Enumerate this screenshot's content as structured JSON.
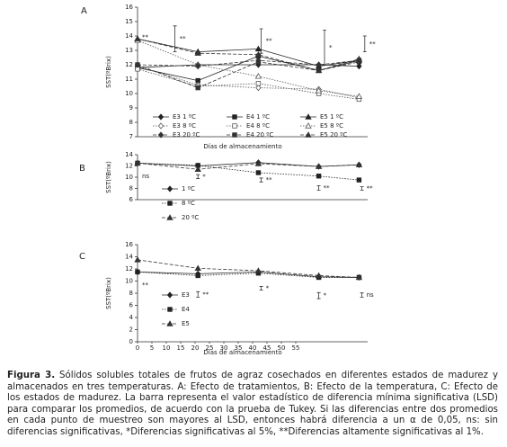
{
  "chart_data": [
    {
      "type": "line",
      "panel": "A",
      "y_label": "SST(ºBrix)",
      "x_label": "Días de almacenamiento",
      "x": [
        0,
        21,
        42,
        63,
        77
      ],
      "xlim": [
        0,
        80
      ],
      "ylim": [
        7,
        16
      ],
      "yticks": [
        7,
        8,
        9,
        10,
        11,
        12,
        13,
        14,
        15,
        16
      ],
      "series": [
        {
          "name": "E3 1 ºC",
          "color": "#222222",
          "marker": "diamond",
          "open": false,
          "dash": "solid",
          "values": [
            11.8,
            12.0,
            12.0,
            12.0,
            11.9
          ]
        },
        {
          "name": "E4 1 ºC",
          "color": "#222222",
          "marker": "square",
          "open": false,
          "dash": "solid",
          "values": [
            11.8,
            10.9,
            12.6,
            11.6,
            12.3
          ]
        },
        {
          "name": "E5 1 ºC",
          "color": "#222222",
          "marker": "triangle",
          "open": false,
          "dash": "solid",
          "values": [
            13.8,
            12.9,
            13.1,
            11.9,
            12.3
          ]
        },
        {
          "name": "E3 8 ºC",
          "color": "#555555",
          "marker": "diamond",
          "open": true,
          "dash": "dotted",
          "values": [
            11.9,
            10.6,
            10.4,
            10.3,
            9.7
          ]
        },
        {
          "name": "E4 8 ºC",
          "color": "#555555",
          "marker": "square",
          "open": true,
          "dash": "dotted",
          "values": [
            11.7,
            10.5,
            10.7,
            10.0,
            9.6
          ]
        },
        {
          "name": "E5 8 ºC",
          "color": "#555555",
          "marker": "triangle",
          "open": true,
          "dash": "dotted",
          "values": [
            13.7,
            12.0,
            11.2,
            10.2,
            9.8
          ]
        },
        {
          "name": "E3 20 ºC",
          "color": "#333333",
          "marker": "diamond",
          "open": false,
          "dash": "dashed",
          "values": [
            12.0,
            11.9,
            12.3,
            12.0,
            12.3
          ]
        },
        {
          "name": "E4 20 ºC",
          "color": "#333333",
          "marker": "square",
          "open": false,
          "dash": "dashed",
          "values": [
            12.0,
            10.4,
            12.2,
            11.6,
            12.2
          ]
        },
        {
          "name": "E5 20 ºC",
          "color": "#333333",
          "marker": "triangle",
          "open": false,
          "dash": "dashed",
          "values": [
            13.8,
            12.8,
            12.7,
            11.6,
            12.4
          ]
        }
      ],
      "lsd": {
        "x": [
          0,
          13,
          43,
          65,
          79
        ],
        "values": [
          13.9,
          13.8,
          13.65,
          13.2,
          13.45
        ],
        "errors": [
          null,
          0.9,
          0.85,
          1.2,
          0.55
        ],
        "labels": [
          "**",
          "**",
          "**",
          "*",
          "**"
        ]
      }
    },
    {
      "type": "line",
      "panel": "B",
      "y_label": "SST(ºBrix)",
      "x": [
        0,
        21,
        42,
        63,
        77
      ],
      "xlim": [
        0,
        80
      ],
      "ylim": [
        6,
        14
      ],
      "yticks": [
        6,
        8,
        10,
        12,
        14
      ],
      "series": [
        {
          "name": "1 ºC",
          "color": "#222222",
          "marker": "diamond",
          "open": false,
          "dash": "solid",
          "values": [
            12.5,
            12.0,
            12.6,
            11.9,
            12.2
          ]
        },
        {
          "name": "8 ºC",
          "color": "#222222",
          "marker": "square",
          "open": false,
          "dash": "dotted",
          "values": [
            12.5,
            12.1,
            10.8,
            10.2,
            9.5
          ]
        },
        {
          "name": "20 ºC",
          "color": "#333333",
          "marker": "triangle",
          "open": false,
          "dash": "dashed",
          "values": [
            12.5,
            11.4,
            12.4,
            11.9,
            12.2
          ]
        }
      ],
      "lsd": {
        "x": [
          0,
          21,
          43,
          63,
          78
        ],
        "values": [
          10.2,
          10.1,
          9.5,
          8.1,
          8.0
        ],
        "errors": [
          null,
          0.35,
          0.35,
          0.4,
          0.3
        ],
        "labels": [
          "ns",
          "*",
          "**",
          "**",
          "**"
        ]
      }
    },
    {
      "type": "line",
      "panel": "C",
      "y_label": "SST(ºBrix)",
      "x_label": "Días de almacenamiento",
      "x": [
        0,
        21,
        42,
        63,
        77
      ],
      "xlim": [
        0,
        80
      ],
      "xticks": [
        0,
        5,
        10,
        15,
        20,
        25,
        30,
        35,
        40,
        45,
        50,
        55
      ],
      "ylim": [
        0,
        16
      ],
      "yticks": [
        0,
        2,
        4,
        6,
        8,
        10,
        12,
        14,
        16
      ],
      "series": [
        {
          "name": "E3",
          "color": "#222222",
          "marker": "diamond",
          "open": false,
          "dash": "solid",
          "values": [
            11.5,
            11.2,
            11.5,
            10.7,
            10.6
          ]
        },
        {
          "name": "E4",
          "color": "#222222",
          "marker": "square",
          "open": false,
          "dash": "dotted",
          "values": [
            11.5,
            10.9,
            11.3,
            10.6,
            10.6
          ]
        },
        {
          "name": "E5",
          "color": "#333333",
          "marker": "triangle",
          "open": false,
          "dash": "dashed",
          "values": [
            13.5,
            12.1,
            11.7,
            10.9,
            10.6
          ]
        }
      ],
      "lsd": {
        "x": [
          0,
          21,
          43,
          63,
          78
        ],
        "values": [
          9.3,
          7.8,
          8.8,
          7.6,
          7.7
        ],
        "errors": [
          null,
          0.45,
          0.3,
          0.5,
          0.35
        ],
        "labels": [
          "**",
          "**",
          "*",
          "*",
          "ns"
        ]
      }
    }
  ],
  "caption": {
    "label": "Figura 3.",
    "text": "Sólidos solubles totales de frutos de agraz cosechados en diferentes estados de madurez y almacenados en tres temperaturas. A: Efecto de tratamientos, B: Efecto de la temperatura, C: Efecto de los estados de madurez. La barra representa el valor estadístico de diferencia mínima significativa (LSD) para comparar los promedios, de acuerdo con la prueba de Tukey. Si las diferencias entre dos promedios en cada punto de muestreo son mayores al LSD, entonces habrá diferencia a un α de 0,05, ns: sin diferencias significativas, *Diferencias significativas al 5%, **Diferencias altamente significativas al 1%."
  }
}
